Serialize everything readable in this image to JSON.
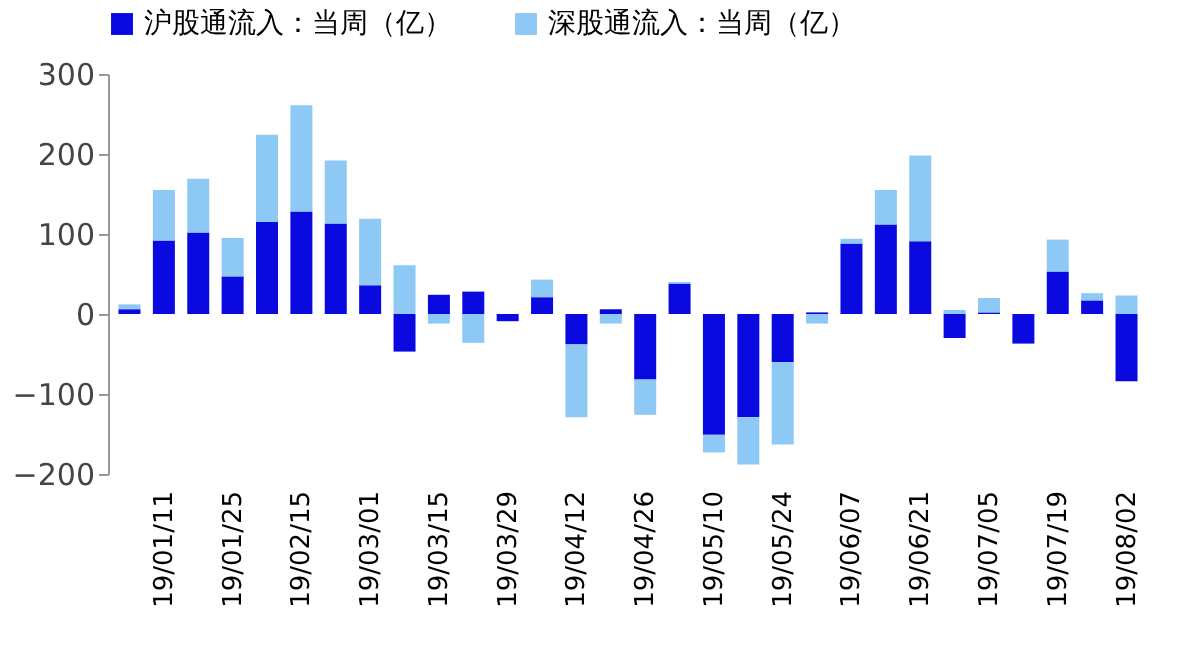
{
  "chart_data": {
    "type": "bar",
    "stacked": true,
    "categories": [
      null,
      "19/01/11",
      null,
      "19/01/25",
      null,
      "19/02/15",
      null,
      "19/03/01",
      null,
      "19/03/15",
      null,
      "19/03/29",
      null,
      "19/04/12",
      null,
      "19/04/26",
      null,
      "19/05/10",
      null,
      "19/05/24",
      null,
      "19/06/07",
      null,
      "19/06/21",
      null,
      "19/07/05",
      null,
      "19/07/19",
      null,
      "19/08/02"
    ],
    "series": [
      {
        "name": "沪股通流入：当周（亿）",
        "color": "#0a0ae0",
        "values": [
          6,
          92,
          102,
          47,
          115,
          128,
          113,
          36,
          -47,
          24,
          28,
          -9,
          21,
          -38,
          6,
          -82,
          38,
          -151,
          -129,
          -60,
          2,
          88,
          112,
          91,
          -30,
          2,
          -37,
          53,
          17,
          -84
        ]
      },
      {
        "name": "深股通流入：当周（亿）",
        "color": "#8ec8f4",
        "values": [
          6,
          63,
          67,
          48,
          109,
          133,
          79,
          83,
          61,
          -12,
          -36,
          0,
          22,
          -91,
          -12,
          -44,
          2,
          -22,
          -59,
          -103,
          -12,
          6,
          43,
          107,
          5,
          18,
          0,
          40,
          9,
          23
        ]
      }
    ],
    "ylim": [
      -200,
      300
    ],
    "yticks": [
      -200,
      -100,
      0,
      100,
      200,
      300
    ],
    "grid": false,
    "legend": "top"
  }
}
